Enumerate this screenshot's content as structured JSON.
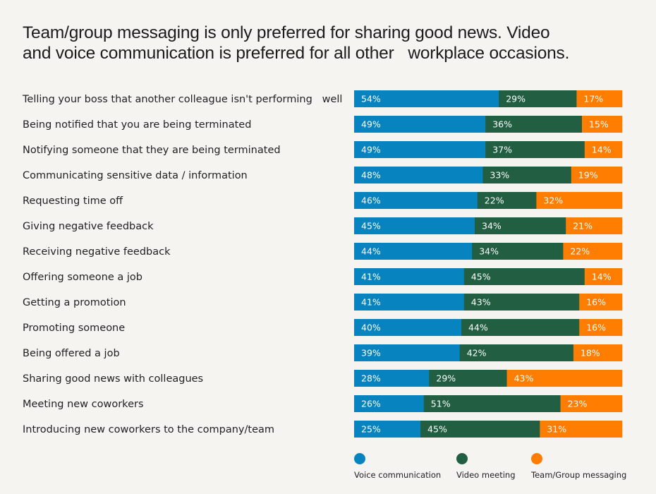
{
  "chart_data": {
    "type": "bar",
    "orientation": "horizontal",
    "stacked": true,
    "title": "Team/group messaging is only preferred for sharing good news. Video and voice communication is preferred for all other   workplace occasions.",
    "title_lines": [
      "Team/group messaging is only preferred for sharing good news. Video",
      "and voice communication is preferred for all other   workplace occasions."
    ],
    "xlabel": "",
    "ylabel": "",
    "xlim": [
      0,
      100
    ],
    "unit": "%",
    "grid": false,
    "legend_position": "bottom-right",
    "categories": [
      "Telling your boss that another colleague isn't performing   well",
      "Being notified that you are being terminated",
      "Notifying someone that they are being terminated",
      "Communicating sensitive data / information",
      "Requesting time off",
      "Giving negative feedback",
      "Receiving negative feedback",
      "Offering someone a job",
      "Getting a promotion",
      "Promoting someone",
      "Being offered a job",
      "Sharing good news with colleagues",
      "Meeting new coworkers",
      "Introducing new coworkers to the company/team"
    ],
    "series": [
      {
        "name": "Voice communication",
        "color": "#0784bf",
        "values": [
          54,
          49,
          49,
          48,
          46,
          45,
          44,
          41,
          41,
          40,
          39,
          28,
          26,
          25
        ]
      },
      {
        "name": "Video meeting",
        "color": "#215e42",
        "values": [
          29,
          36,
          37,
          33,
          22,
          34,
          34,
          45,
          43,
          44,
          42,
          29,
          51,
          45
        ]
      },
      {
        "name": "Team/Group messaging",
        "color": "#ff7d00",
        "values": [
          17,
          15,
          14,
          19,
          32,
          21,
          22,
          14,
          16,
          16,
          18,
          43,
          23,
          31
        ]
      }
    ]
  }
}
